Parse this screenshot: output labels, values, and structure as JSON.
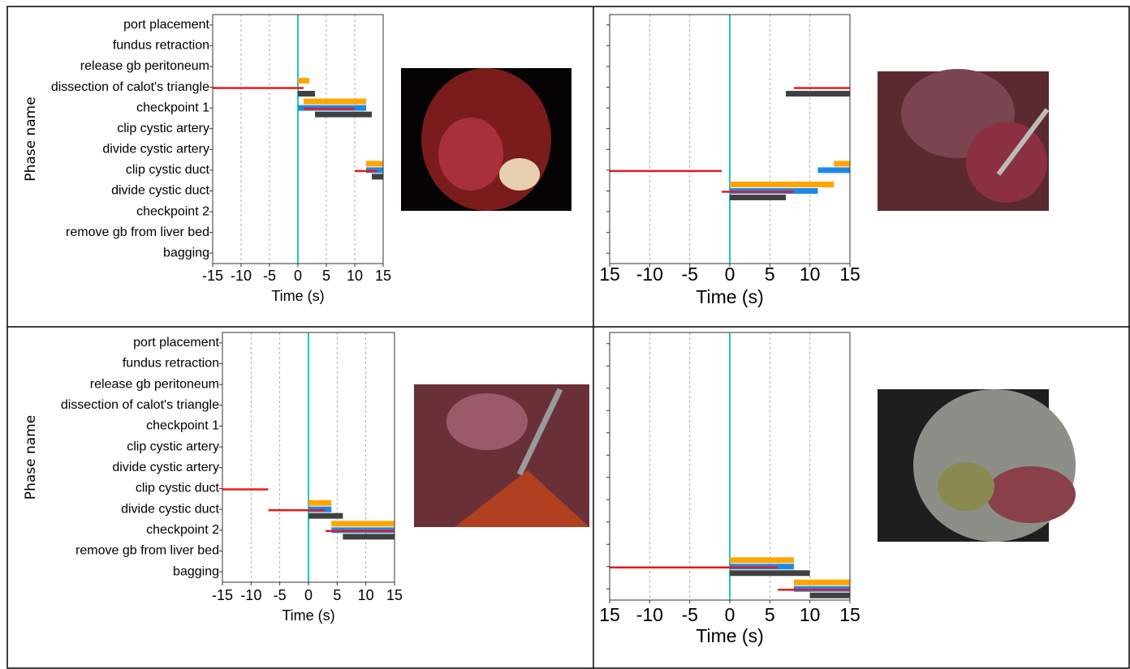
{
  "chart_data": [
    {
      "type": "timeline",
      "x_label": "Time (s)",
      "y_label": "Phase name",
      "categories": [
        "port placement",
        "fundus retraction",
        "release gb peritoneum",
        "dissection of calot's triangle",
        "checkpoint 1",
        "clip cystic artery",
        "divide cystic artery",
        "clip cystic duct",
        "divide cystic duct",
        "checkpoint 2",
        "remove gb from liver bed",
        "bagging"
      ],
      "xlim": [
        -15,
        15
      ],
      "xticks": [
        -15,
        -10,
        -5,
        0,
        5,
        10,
        15
      ],
      "grid": true,
      "reference_x": 0,
      "reference_color": "#1ec8c8",
      "series": [
        {
          "color": "#ffa500",
          "values": [
            null,
            null,
            null,
            [
              0,
              2
            ],
            [
              1,
              12
            ],
            null,
            null,
            [
              12,
              15
            ],
            null,
            null,
            null,
            null
          ]
        },
        {
          "color": "#1e88e5",
          "values": [
            null,
            null,
            null,
            null,
            [
              0,
              12
            ],
            null,
            null,
            [
              12,
              15
            ],
            null,
            null,
            null,
            null
          ]
        },
        {
          "color": "#e41a1c",
          "style": "line",
          "values": [
            null,
            null,
            null,
            [
              -15,
              1
            ],
            [
              1,
              10
            ],
            null,
            null,
            [
              10,
              14
            ],
            null,
            null,
            null,
            null
          ]
        },
        {
          "color": "#404040",
          "values": [
            null,
            null,
            null,
            [
              0,
              3
            ],
            [
              3,
              13
            ],
            null,
            null,
            [
              13,
              15
            ],
            null,
            null,
            null,
            null
          ]
        }
      ]
    },
    {
      "type": "timeline",
      "x_label": "Time (s)",
      "categories": [
        null,
        null,
        null,
        null,
        null,
        null,
        null,
        null,
        null,
        null,
        null,
        null
      ],
      "xlim": [
        -15,
        15
      ],
      "xticks": [
        {
          "value": -15,
          "label": "15"
        },
        -10,
        -5,
        0,
        5,
        10,
        15
      ],
      "grid": true,
      "reference_x": 0,
      "reference_color": "#1ec8c8",
      "series": [
        {
          "color": "#ffa500",
          "values": [
            null,
            null,
            null,
            null,
            null,
            null,
            null,
            [
              13,
              15
            ],
            [
              0,
              13
            ],
            null,
            null,
            null
          ]
        },
        {
          "color": "#1e88e5",
          "values": [
            null,
            null,
            null,
            null,
            null,
            null,
            null,
            [
              11,
              15
            ],
            [
              0,
              11
            ],
            null,
            null,
            null
          ]
        },
        {
          "color": "#e41a1c",
          "style": "line",
          "values": [
            null,
            null,
            null,
            [
              8,
              15
            ],
            null,
            null,
            null,
            [
              -15,
              -1
            ],
            [
              -1,
              8
            ],
            null,
            null,
            null
          ]
        },
        {
          "color": "#404040",
          "values": [
            null,
            null,
            null,
            [
              7,
              15
            ],
            null,
            null,
            null,
            null,
            [
              0,
              7
            ],
            null,
            null,
            null
          ]
        }
      ]
    },
    {
      "type": "timeline",
      "x_label": "Time (s)",
      "y_label": "Phase name",
      "categories": [
        "port placement",
        "fundus retraction",
        "release gb peritoneum",
        "dissection of calot's triangle",
        "checkpoint 1",
        "clip cystic artery",
        "divide cystic artery",
        "clip cystic duct",
        "divide cystic duct",
        "checkpoint 2",
        "remove gb from liver bed",
        "bagging"
      ],
      "xlim": [
        -15,
        15
      ],
      "xticks": [
        -15,
        -10,
        -5,
        0,
        5,
        10,
        15
      ],
      "grid": true,
      "reference_x": 0,
      "reference_color": "#1ec8c8",
      "series": [
        {
          "color": "#ffa500",
          "values": [
            null,
            null,
            null,
            null,
            null,
            null,
            null,
            null,
            [
              0,
              4
            ],
            [
              4,
              15
            ],
            null,
            null
          ]
        },
        {
          "color": "#1e88e5",
          "values": [
            null,
            null,
            null,
            null,
            null,
            null,
            null,
            null,
            [
              0,
              4
            ],
            [
              4,
              15
            ],
            null,
            null
          ]
        },
        {
          "color": "#e41a1c",
          "style": "line",
          "values": [
            null,
            null,
            null,
            null,
            null,
            null,
            null,
            [
              -15,
              -7
            ],
            [
              -7,
              3
            ],
            [
              3,
              15
            ],
            null,
            null
          ]
        },
        {
          "color": "#404040",
          "values": [
            null,
            null,
            null,
            null,
            null,
            null,
            null,
            null,
            [
              0,
              6
            ],
            [
              6,
              15
            ],
            null,
            null
          ]
        }
      ]
    },
    {
      "type": "timeline",
      "x_label": "Time (s)",
      "categories": [
        null,
        null,
        null,
        null,
        null,
        null,
        null,
        null,
        null,
        null,
        null,
        null
      ],
      "xlim": [
        -15,
        15
      ],
      "xticks": [
        {
          "value": -15,
          "label": "15"
        },
        -10,
        -5,
        0,
        5,
        10,
        15
      ],
      "grid": true,
      "reference_x": 0,
      "reference_color": "#1ec8c8",
      "series": [
        {
          "color": "#ffa500",
          "values": [
            null,
            null,
            null,
            null,
            null,
            null,
            null,
            null,
            null,
            null,
            [
              0,
              8
            ],
            [
              8,
              15
            ]
          ]
        },
        {
          "color": "#1e88e5",
          "values": [
            null,
            null,
            null,
            null,
            null,
            null,
            null,
            null,
            null,
            null,
            [
              0,
              8
            ],
            [
              8,
              15
            ]
          ]
        },
        {
          "color": "#e41a1c",
          "style": "line",
          "values": [
            null,
            null,
            null,
            null,
            null,
            null,
            null,
            null,
            null,
            null,
            [
              -15,
              6
            ],
            [
              6,
              15
            ]
          ]
        },
        {
          "color": "#404040",
          "values": [
            null,
            null,
            null,
            null,
            null,
            null,
            null,
            null,
            null,
            null,
            [
              0,
              10
            ],
            [
              10,
              15
            ]
          ]
        }
      ]
    }
  ]
}
